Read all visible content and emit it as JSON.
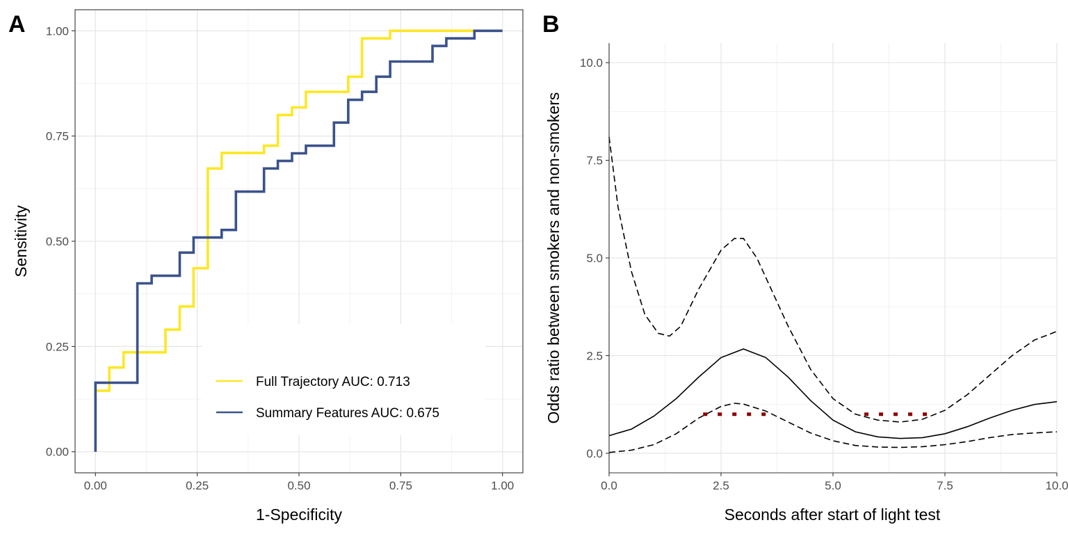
{
  "chart_data": [
    {
      "panel_label": "A",
      "type": "line",
      "step": true,
      "xlabel": "1-Specificity",
      "ylabel": "Sensitivity",
      "xlim": [
        -0.05,
        1.05
      ],
      "ylim": [
        -0.05,
        1.05
      ],
      "xticks": [
        0,
        0.25,
        0.5,
        0.75,
        1
      ],
      "xtick_labels": [
        "0.00",
        "0.25",
        "0.50",
        "0.75",
        "1.00"
      ],
      "yticks": [
        0,
        0.25,
        0.5,
        0.75,
        1
      ],
      "ytick_labels": [
        "0.00",
        "0.25",
        "0.50",
        "0.75",
        "1.00"
      ],
      "grid": true,
      "legend_position": "bottom-right",
      "series": [
        {
          "name": "Full Trajectory AUC: 0.713",
          "color": "#FDE725",
          "x": [
            0,
            0,
            0.034,
            0.034,
            0.069,
            0.069,
            0.172,
            0.172,
            0.207,
            0.207,
            0.241,
            0.241,
            0.276,
            0.276,
            0.31,
            0.31,
            0.414,
            0.414,
            0.448,
            0.448,
            0.483,
            0.483,
            0.517,
            0.517,
            0.621,
            0.621,
            0.655,
            0.655,
            0.724,
            0.724,
            0.931,
            0.931,
            1.0
          ],
          "y": [
            0,
            0.145,
            0.145,
            0.2,
            0.2,
            0.236,
            0.236,
            0.29,
            0.29,
            0.345,
            0.345,
            0.436,
            0.436,
            0.673,
            0.673,
            0.71,
            0.71,
            0.727,
            0.727,
            0.8,
            0.8,
            0.818,
            0.818,
            0.855,
            0.855,
            0.891,
            0.891,
            0.982,
            0.982,
            1.0,
            1.0,
            1.0,
            1.0
          ]
        },
        {
          "name": "Summary Features AUC: 0.675",
          "color": "#3B528B",
          "x": [
            0,
            0,
            0.103,
            0.103,
            0.138,
            0.138,
            0.207,
            0.207,
            0.241,
            0.241,
            0.31,
            0.31,
            0.345,
            0.345,
            0.414,
            0.414,
            0.448,
            0.448,
            0.483,
            0.483,
            0.517,
            0.517,
            0.586,
            0.586,
            0.621,
            0.621,
            0.655,
            0.655,
            0.69,
            0.69,
            0.724,
            0.724,
            0.828,
            0.828,
            0.862,
            0.862,
            0.931,
            0.931,
            0.966,
            0.966,
            1.0
          ],
          "y": [
            0,
            0.164,
            0.164,
            0.4,
            0.4,
            0.418,
            0.418,
            0.473,
            0.473,
            0.509,
            0.509,
            0.527,
            0.527,
            0.618,
            0.618,
            0.673,
            0.673,
            0.691,
            0.691,
            0.709,
            0.709,
            0.727,
            0.727,
            0.782,
            0.782,
            0.836,
            0.836,
            0.855,
            0.855,
            0.891,
            0.891,
            0.927,
            0.927,
            0.964,
            0.964,
            0.982,
            0.982,
            1.0,
            1.0,
            1.0,
            1.0
          ]
        }
      ]
    },
    {
      "panel_label": "B",
      "type": "line",
      "xlabel": "Seconds after start of light test",
      "ylabel": "Odds ratio between smokers and non-smokers",
      "xlim": [
        0,
        10
      ],
      "ylim": [
        -0.5,
        10.5
      ],
      "xticks": [
        0,
        2.5,
        5,
        7.5,
        10
      ],
      "xtick_labels": [
        "0.0",
        "2.5",
        "5.0",
        "7.5",
        "10.0"
      ],
      "yticks": [
        0,
        2.5,
        5,
        7.5,
        10
      ],
      "ytick_labels": [
        "0.0",
        "2.5",
        "5.0",
        "7.5",
        "10.0"
      ],
      "grid": true,
      "series": [
        {
          "role": "estimate",
          "color": "#000000",
          "dash": "solid",
          "x": [
            0,
            0.5,
            1,
            1.5,
            2,
            2.5,
            3,
            3.5,
            4,
            4.5,
            5,
            5.5,
            6,
            6.5,
            7,
            7.5,
            8,
            8.5,
            9,
            9.5,
            10
          ],
          "y": [
            0.45,
            0.62,
            0.95,
            1.4,
            1.95,
            2.45,
            2.67,
            2.45,
            1.95,
            1.35,
            0.85,
            0.55,
            0.42,
            0.38,
            0.4,
            0.5,
            0.68,
            0.9,
            1.1,
            1.25,
            1.32
          ]
        },
        {
          "role": "upper bound",
          "color": "#000000",
          "dash": "dashed",
          "x": [
            0,
            0.2,
            0.5,
            0.8,
            1.1,
            1.35,
            1.6,
            2,
            2.5,
            2.8,
            3,
            3.3,
            3.7,
            4,
            4.5,
            5,
            5.5,
            6,
            6.5,
            7,
            7.5,
            8,
            8.5,
            9,
            9.5,
            10
          ],
          "y": [
            8.1,
            6.3,
            4.65,
            3.55,
            3.07,
            3.0,
            3.25,
            4.2,
            5.2,
            5.5,
            5.5,
            5.0,
            4.0,
            3.25,
            2.15,
            1.4,
            1.0,
            0.85,
            0.8,
            0.87,
            1.1,
            1.5,
            2.0,
            2.5,
            2.9,
            3.12
          ]
        },
        {
          "role": "lower bound",
          "color": "#000000",
          "dash": "dashed",
          "x": [
            0,
            0.5,
            1,
            1.5,
            2,
            2.5,
            2.8,
            3,
            3.5,
            4,
            4.5,
            5,
            5.5,
            6,
            6.5,
            7,
            7.5,
            8,
            8.5,
            9,
            9.5,
            10
          ],
          "y": [
            0.02,
            0.08,
            0.22,
            0.5,
            0.9,
            1.2,
            1.28,
            1.26,
            1.08,
            0.8,
            0.52,
            0.32,
            0.2,
            0.16,
            0.15,
            0.17,
            0.22,
            0.3,
            0.4,
            0.48,
            0.52,
            0.55
          ]
        }
      ],
      "significance_markers": {
        "color": "#8B0000",
        "y": 1.0,
        "segments": [
          [
            2.1,
            3.6
          ],
          [
            5.7,
            7.3
          ]
        ]
      }
    }
  ]
}
